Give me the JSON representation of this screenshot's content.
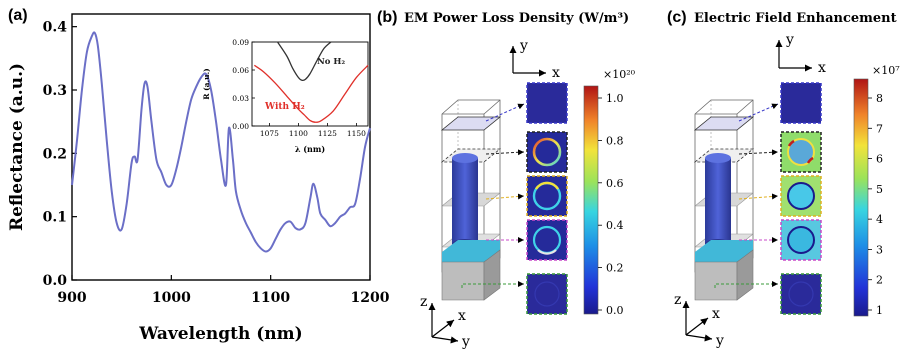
{
  "panels": {
    "a": {
      "label": "(a)",
      "ylabel": "Reflectance (a.u.)",
      "xlabel": "Wavelength (nm)"
    },
    "b": {
      "label": "(b)",
      "title": "EM Power Loss Density (W/m³)",
      "cbar_exponent": "×10²⁰"
    },
    "c": {
      "label": "(c)",
      "title": "Electric Field Enhancement",
      "cbar_exponent": "×10⁷"
    }
  },
  "axis_letters": {
    "x": "x",
    "y": "y",
    "z": "z"
  },
  "chart_data": [
    {
      "type": "line",
      "panel": "a",
      "xlabel": "Wavelength (nm)",
      "ylabel": "Reflectance (a.u.)",
      "xlim": [
        900,
        1200
      ],
      "ylim": [
        0,
        0.42
      ],
      "xticks": [
        900,
        1000,
        1100,
        1200
      ],
      "yticks": [
        0.0,
        0.1,
        0.2,
        0.3,
        0.4
      ],
      "tick_labels_x": [
        "900",
        "1000",
        "1100",
        "1200"
      ],
      "tick_labels_y": [
        "0.0",
        "0.1",
        "0.2",
        "0.3",
        "0.4"
      ],
      "grid": false,
      "color": "#6b6fc7",
      "series": [
        {
          "x": [
            900,
            905,
            910,
            915,
            920,
            923,
            926,
            930,
            935,
            940,
            945,
            950,
            955,
            960,
            963,
            966,
            970,
            973,
            976,
            980,
            985,
            990,
            995,
            1000,
            1005,
            1010,
            1015,
            1020,
            1025,
            1030,
            1035,
            1040,
            1045,
            1050,
            1055,
            1058,
            1062,
            1065,
            1070,
            1075,
            1080,
            1085,
            1090,
            1095,
            1100,
            1105,
            1110,
            1115,
            1120,
            1125,
            1130,
            1135,
            1140,
            1143,
            1147,
            1150,
            1155,
            1160,
            1165,
            1170,
            1175,
            1180,
            1185,
            1190,
            1195,
            1200
          ],
          "y": [
            0.15,
            0.22,
            0.3,
            0.36,
            0.385,
            0.39,
            0.37,
            0.31,
            0.22,
            0.14,
            0.09,
            0.08,
            0.12,
            0.185,
            0.195,
            0.19,
            0.27,
            0.31,
            0.305,
            0.25,
            0.19,
            0.17,
            0.15,
            0.15,
            0.175,
            0.21,
            0.25,
            0.285,
            0.305,
            0.32,
            0.325,
            0.3,
            0.25,
            0.19,
            0.15,
            0.24,
            0.19,
            0.14,
            0.11,
            0.09,
            0.075,
            0.06,
            0.05,
            0.045,
            0.05,
            0.065,
            0.08,
            0.09,
            0.092,
            0.082,
            0.08,
            0.09,
            0.13,
            0.152,
            0.13,
            0.105,
            0.095,
            0.085,
            0.09,
            0.1,
            0.105,
            0.115,
            0.12,
            0.16,
            0.21,
            0.24
          ]
        }
      ]
    },
    {
      "type": "line",
      "panel": "a-inset",
      "xlabel": "λ (nm)",
      "ylabel": "R (a.u.)",
      "xlim": [
        1060,
        1160
      ],
      "ylim": [
        0,
        0.09
      ],
      "tick_labels_x": [
        "1075",
        "1100",
        "1125",
        "1150"
      ],
      "tick_labels_y": [
        "0.00",
        "0.03",
        "0.06",
        "0.09"
      ],
      "series": [
        {
          "name": "No H₂",
          "color": "#333333",
          "x": [
            1082,
            1090,
            1095,
            1100,
            1103,
            1106,
            1110,
            1116,
            1122,
            1128
          ],
          "y": [
            0.09,
            0.075,
            0.062,
            0.052,
            0.049,
            0.05,
            0.056,
            0.07,
            0.083,
            0.09
          ]
        },
        {
          "name": "With H₂",
          "color": "#e0302a",
          "x": [
            1062,
            1070,
            1080,
            1090,
            1100,
            1105,
            1110,
            1115,
            1120,
            1130,
            1140,
            1150,
            1160
          ],
          "y": [
            0.065,
            0.058,
            0.046,
            0.032,
            0.018,
            0.012,
            0.006,
            0.004,
            0.006,
            0.016,
            0.034,
            0.052,
            0.065
          ]
        }
      ]
    },
    {
      "type": "heatmap",
      "panel": "b-colorbar",
      "range": [
        0.0,
        1.0
      ],
      "tick_labels": [
        "1.0",
        "0.8",
        "0.6",
        "0.4",
        "0.2",
        "0.0"
      ]
    },
    {
      "type": "heatmap",
      "panel": "c-colorbar",
      "range": [
        1,
        8
      ],
      "tick_labels": [
        "8",
        "7",
        "6",
        "5",
        "4",
        "3",
        "2",
        "1"
      ]
    }
  ]
}
